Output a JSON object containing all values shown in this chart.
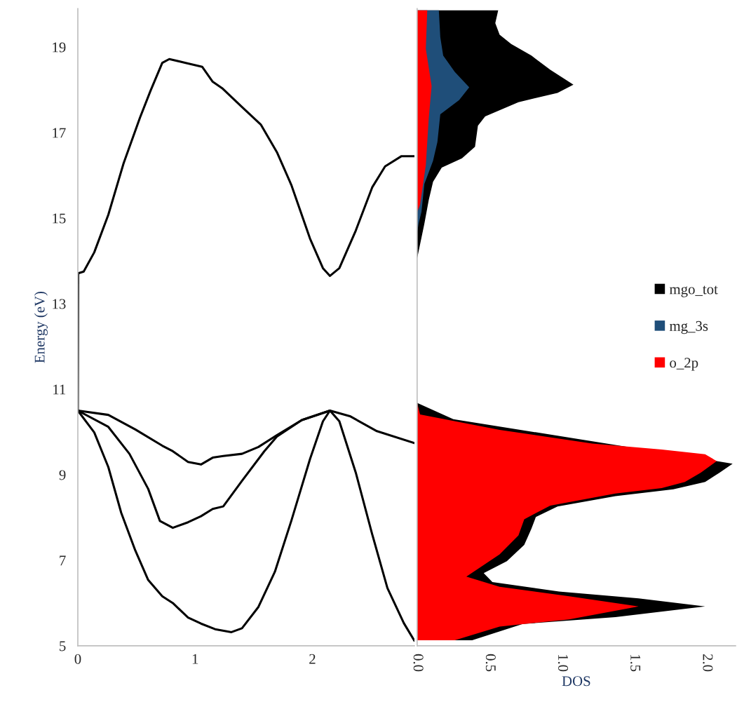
{
  "chart_data": [
    {
      "type": "line",
      "ylabel": "Energy (eV)",
      "xlim": [
        0,
        2.87
      ],
      "ylim": [
        5,
        19.9
      ],
      "xticks": [
        0,
        1,
        2
      ],
      "yticks": [
        5,
        7,
        9,
        11,
        13,
        15,
        17,
        19
      ],
      "grid": false,
      "legend": false,
      "series": [
        {
          "color": "#000000",
          "x": [
            0,
            0.003,
            0.05,
            0.14,
            0.26,
            0.39,
            0.53,
            0.62,
            0.72,
            0.78,
            0.92,
            1.06,
            1.15,
            1.23,
            1.4,
            1.56,
            1.7,
            1.82,
            1.98,
            2.09,
            2.15,
            2.23,
            2.37,
            2.51,
            2.62,
            2.76,
            2.87
          ],
          "values": [
            10.5,
            13.71,
            13.75,
            14.2,
            15.08,
            16.28,
            17.35,
            17.98,
            18.63,
            18.72,
            18.63,
            18.54,
            18.19,
            18.04,
            17.6,
            17.19,
            16.53,
            15.78,
            14.52,
            13.83,
            13.65,
            13.83,
            14.71,
            15.72,
            16.21,
            16.45,
            16.45
          ]
        },
        {
          "color": "#000000",
          "x": [
            0,
            0.26,
            0.49,
            0.72,
            0.81,
            0.94,
            1.05,
            1.15,
            1.24,
            1.4,
            1.54,
            1.7,
            1.91,
            2.15,
            2.32,
            2.55,
            2.87
          ],
          "values": [
            10.5,
            10.4,
            10.06,
            9.68,
            9.55,
            9.3,
            9.24,
            9.4,
            9.44,
            9.49,
            9.65,
            9.93,
            10.28,
            10.5,
            10.37,
            10.02,
            9.74
          ]
        },
        {
          "color": "#000000",
          "x": [
            0,
            0.26,
            0.44,
            0.6,
            0.7,
            0.81,
            0.94,
            1.05,
            1.15,
            1.24,
            1.4,
            1.59,
            1.7,
            1.91,
            2.15
          ],
          "values": [
            10.5,
            10.12,
            9.49,
            8.67,
            7.92,
            7.76,
            7.89,
            8.03,
            8.2,
            8.26,
            8.86,
            9.55,
            9.9,
            10.28,
            10.5
          ]
        },
        {
          "color": "#000000",
          "x": [
            0,
            0.14,
            0.26,
            0.37,
            0.49,
            0.6,
            0.72,
            0.81,
            0.94,
            1.05,
            1.17,
            1.31,
            1.4,
            1.54,
            1.68,
            1.82,
            1.98,
            2.09,
            2.15,
            2.23,
            2.37,
            2.51,
            2.64,
            2.78,
            2.87
          ],
          "values": [
            10.5,
            9.99,
            9.18,
            8.11,
            7.23,
            6.54,
            6.16,
            6.0,
            5.66,
            5.52,
            5.39,
            5.32,
            5.41,
            5.91,
            6.73,
            7.92,
            9.37,
            10.25,
            10.5,
            10.25,
            9.05,
            7.61,
            6.35,
            5.53,
            5.12
          ]
        }
      ]
    },
    {
      "type": "area",
      "orientation": "horizontal",
      "xlabel": "DOS",
      "xlim": [
        0,
        2.2
      ],
      "ylim": [
        5,
        19.9
      ],
      "xticks": [
        {
          "value": 0,
          "label": "0.0"
        },
        {
          "value": 0.5,
          "label": "0.5"
        },
        {
          "value": 1,
          "label": "1.0"
        },
        {
          "value": 1.5,
          "label": "1.5"
        },
        {
          "value": 2,
          "label": "2.0"
        }
      ],
      "tick_labels": "x",
      "grid": false,
      "legend": "right",
      "series": [
        {
          "name": "mgo_tot",
          "color": "#000000",
          "x": [
            19.86,
            19.56,
            19.29,
            19.07,
            18.8,
            18.47,
            18.12,
            17.93,
            17.71,
            17.38,
            17.16,
            16.67,
            16.4,
            16.18,
            15.85,
            15.42,
            14.87,
            14.06,
            10.68,
            10.3,
            9.26,
            9.05,
            8.83,
            8.66,
            8.5,
            8.26,
            8.01,
            7.74,
            7.36,
            6.98,
            6.7,
            6.49,
            6.27,
            6.11,
            5.92,
            5.67,
            5.51,
            5.13
          ],
          "values": [
            0.56,
            0.54,
            0.57,
            0.65,
            0.79,
            0.92,
            1.08,
            0.97,
            0.7,
            0.47,
            0.42,
            0.4,
            0.31,
            0.17,
            0.11,
            0.08,
            0.05,
            0.0,
            0.0,
            0.25,
            2.18,
            2.09,
            1.99,
            1.77,
            1.37,
            0.97,
            0.82,
            0.79,
            0.74,
            0.62,
            0.46,
            0.52,
            0.98,
            1.53,
            1.99,
            1.37,
            0.73,
            0.38
          ]
        },
        {
          "name": "mg_3s",
          "color": "#1f4e79",
          "x": [
            19.86,
            19.23,
            18.8,
            18.42,
            18.06,
            17.76,
            17.43,
            16.78,
            16.34,
            15.8,
            15.15,
            14.87,
            14.66
          ],
          "values": [
            0.15,
            0.16,
            0.18,
            0.26,
            0.36,
            0.29,
            0.16,
            0.14,
            0.11,
            0.05,
            0.03,
            0.01,
            0.0
          ]
        },
        {
          "name": "o_2p",
          "color": "#ff0000",
          "x": [
            19.86,
            18.96,
            18.09,
            17.33,
            16.24,
            15.31,
            15.15,
            10.68,
            10.41,
            10.05,
            9.73,
            9.59,
            9.48,
            9.32,
            9.05,
            8.83,
            8.69,
            8.56,
            8.28,
            7.96,
            7.58,
            7.14,
            6.62,
            6.38,
            6.16,
            5.92,
            5.62,
            5.45,
            5.13
          ],
          "values": [
            0.07,
            0.06,
            0.1,
            0.08,
            0.06,
            0.02,
            0.0,
            0.0,
            0.02,
            0.57,
            1.21,
            1.69,
            1.99,
            2.07,
            1.96,
            1.85,
            1.69,
            1.37,
            0.92,
            0.74,
            0.7,
            0.57,
            0.34,
            0.57,
            1.05,
            1.53,
            1.05,
            0.57,
            0.26
          ]
        }
      ]
    }
  ]
}
